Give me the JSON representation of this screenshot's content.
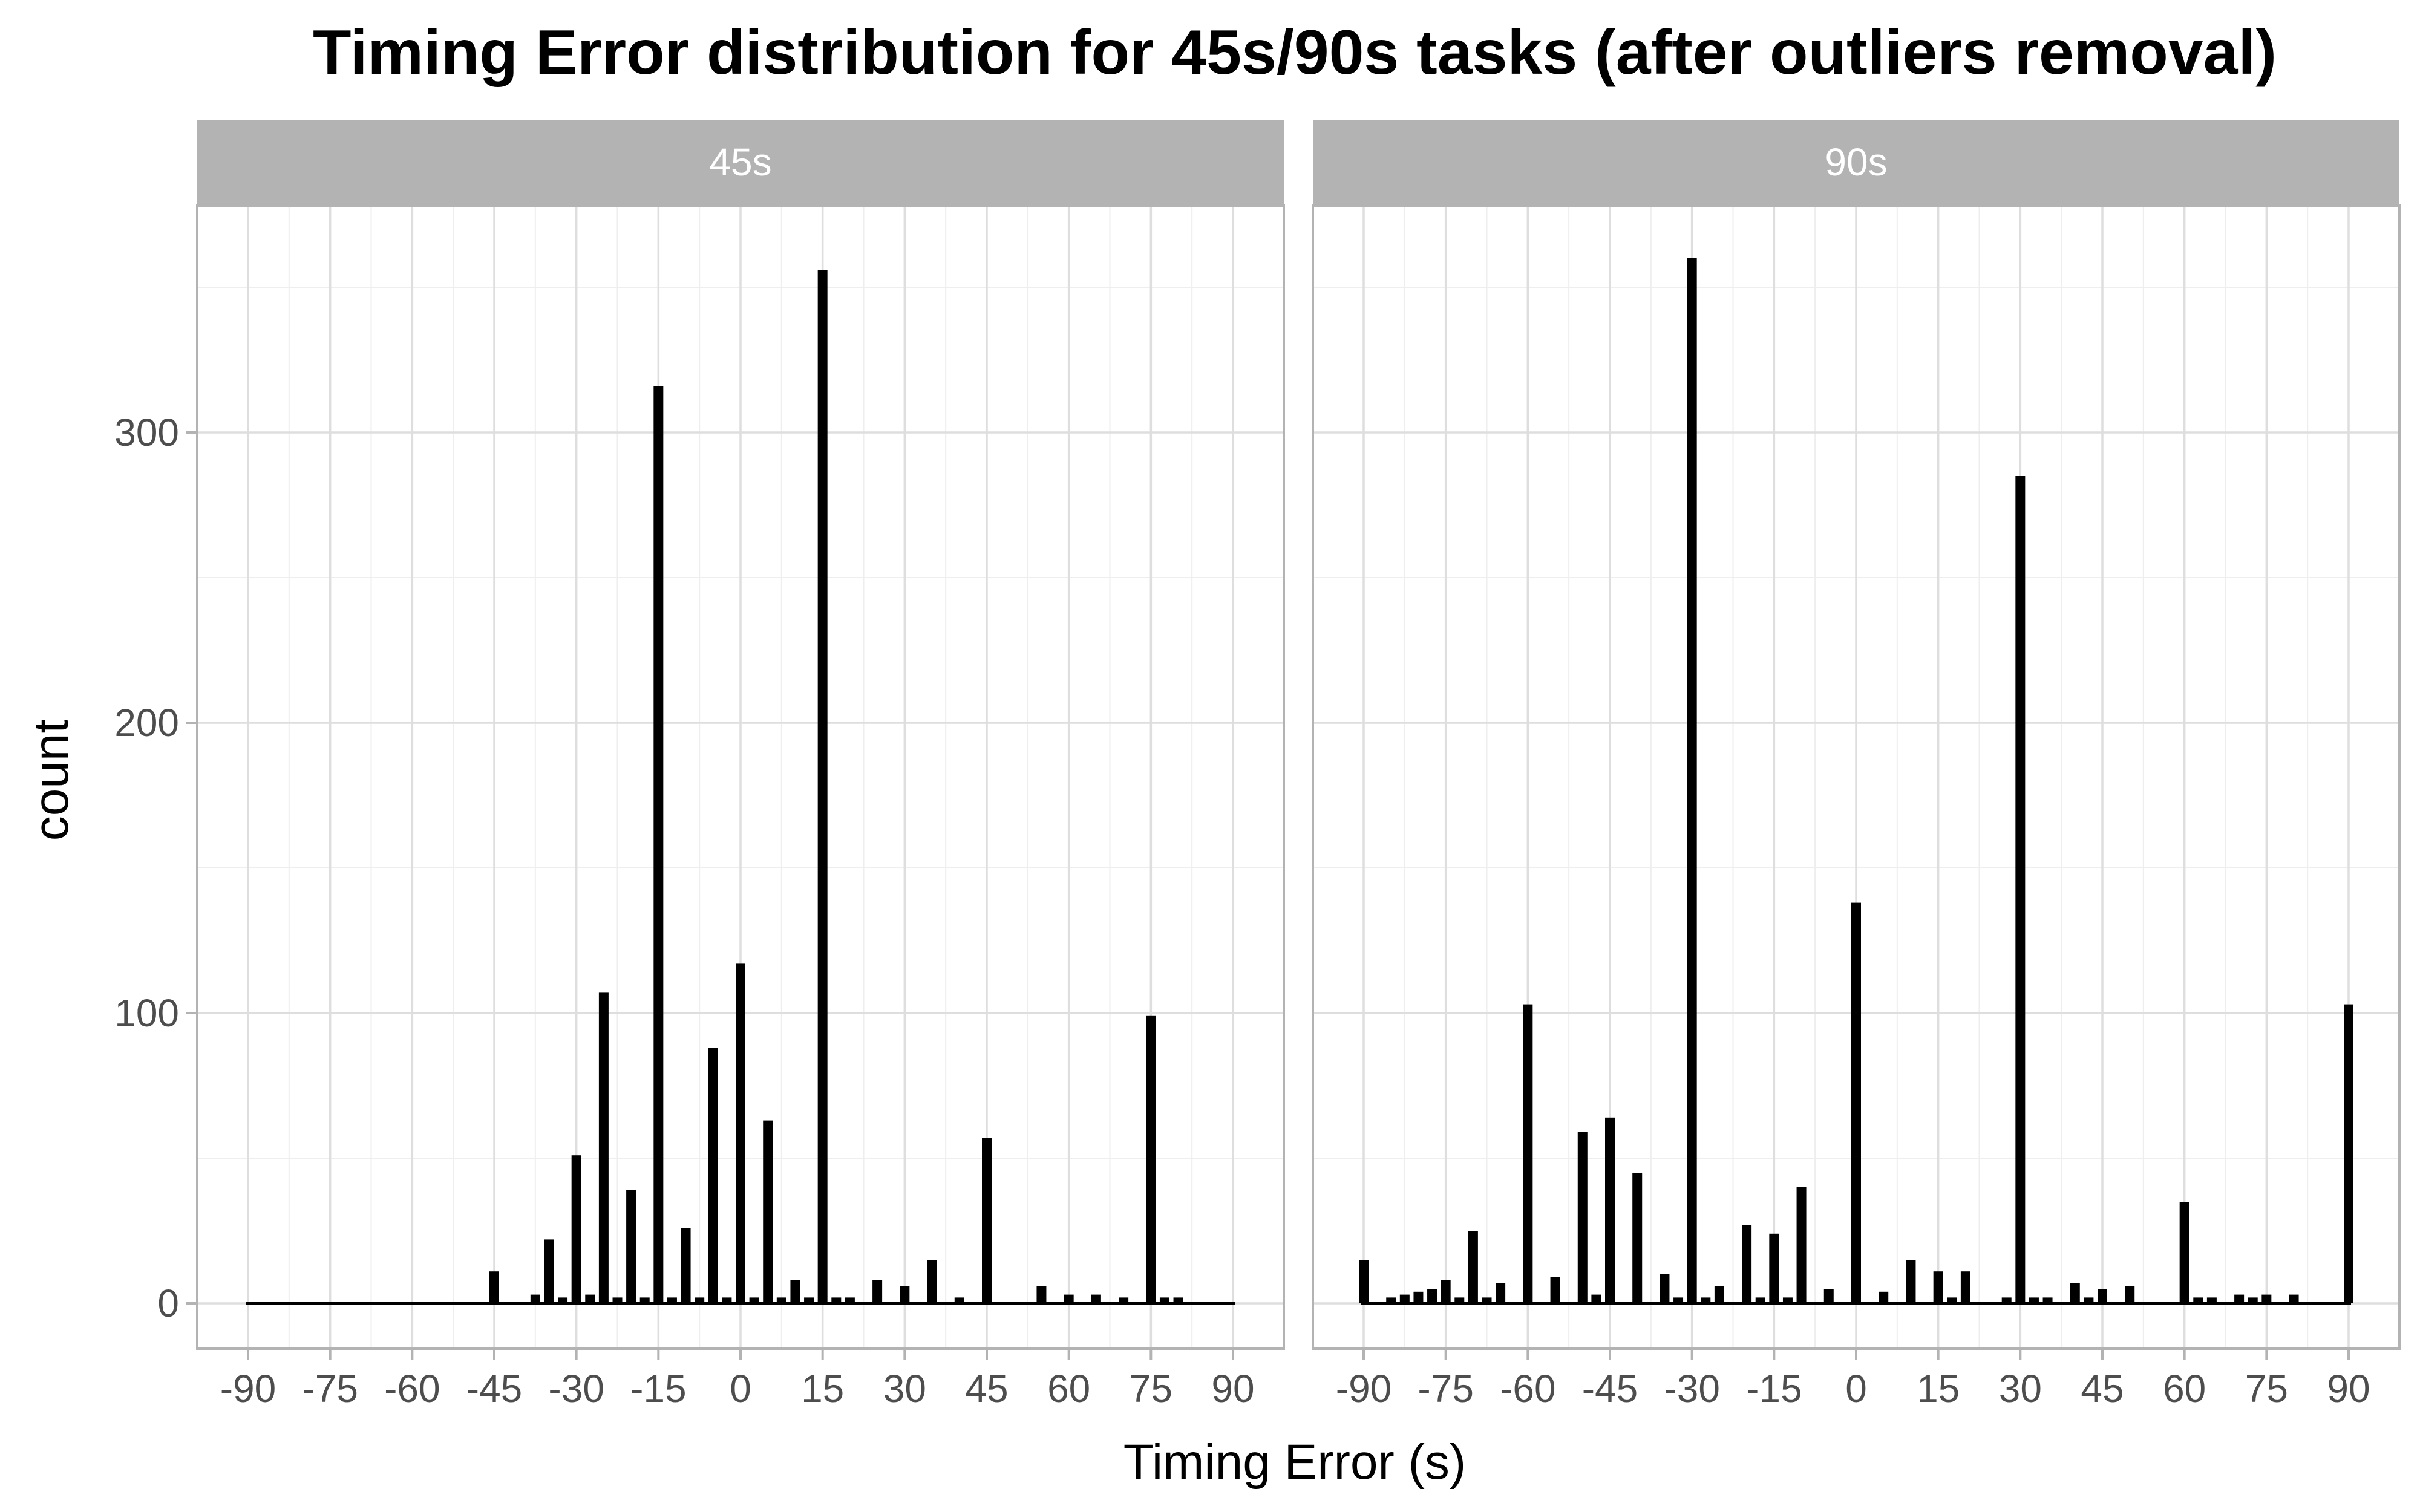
{
  "chart_data": {
    "type": "bar",
    "title": "Timing Error distribution for 45s/90s tasks (after outliers removal)",
    "xlabel": "Timing Error (s)",
    "ylabel": "count",
    "xlim": [
      -90,
      90
    ],
    "ylim": [
      0,
      360
    ],
    "x_ticks": [
      "-90",
      "-75",
      "-60",
      "-45",
      "-30",
      "-15",
      "0",
      "15",
      "30",
      "45",
      "60",
      "75",
      "90"
    ],
    "y_ticks": [
      "0",
      "100",
      "200",
      "300"
    ],
    "grid": true,
    "colors": {
      "bar": "#000000",
      "strip": "#b3b3b3",
      "strip_text": "#ffffff"
    },
    "panels": [
      {
        "label": "45s",
        "x": [
          -45,
          -37.5,
          -35,
          -32.5,
          -30,
          -27.5,
          -25,
          -22.5,
          -20,
          -17.5,
          -15,
          -12.5,
          -10,
          -7.5,
          -5,
          -2.5,
          0,
          2.5,
          5,
          7.5,
          10,
          12.5,
          15,
          17.5,
          20,
          25,
          30,
          35,
          40,
          45,
          55,
          60,
          65,
          70,
          75,
          77.5,
          80
        ],
        "values": [
          11,
          3,
          22,
          2,
          51,
          3,
          107,
          2,
          39,
          2,
          316,
          2,
          26,
          2,
          88,
          2,
          117,
          2,
          63,
          2,
          8,
          2,
          356,
          2,
          2,
          8,
          6,
          15,
          2,
          57,
          6,
          3,
          3,
          2,
          99,
          2,
          2
        ]
      },
      {
        "label": "90s",
        "x": [
          -90,
          -85,
          -82.5,
          -80,
          -77.5,
          -75,
          -72.5,
          -70,
          -67.5,
          -65,
          -60,
          -55,
          -50,
          -47.5,
          -45,
          -40,
          -35,
          -32.5,
          -30,
          -27.5,
          -25,
          -20,
          -17.5,
          -15,
          -12.5,
          -10,
          -5,
          0,
          5,
          10,
          15,
          17.5,
          20,
          27.5,
          30,
          32.5,
          35,
          40,
          42.5,
          45,
          50,
          60,
          62.5,
          65,
          70,
          72.5,
          75,
          80,
          90
        ],
        "values": [
          15,
          2,
          3,
          4,
          5,
          8,
          2,
          25,
          2,
          7,
          103,
          9,
          59,
          3,
          64,
          45,
          10,
          2,
          360,
          2,
          6,
          27,
          2,
          24,
          2,
          40,
          5,
          138,
          4,
          15,
          11,
          2,
          11,
          2,
          285,
          2,
          2,
          7,
          2,
          5,
          6,
          35,
          2,
          2,
          3,
          2,
          3,
          3,
          103
        ]
      }
    ]
  }
}
